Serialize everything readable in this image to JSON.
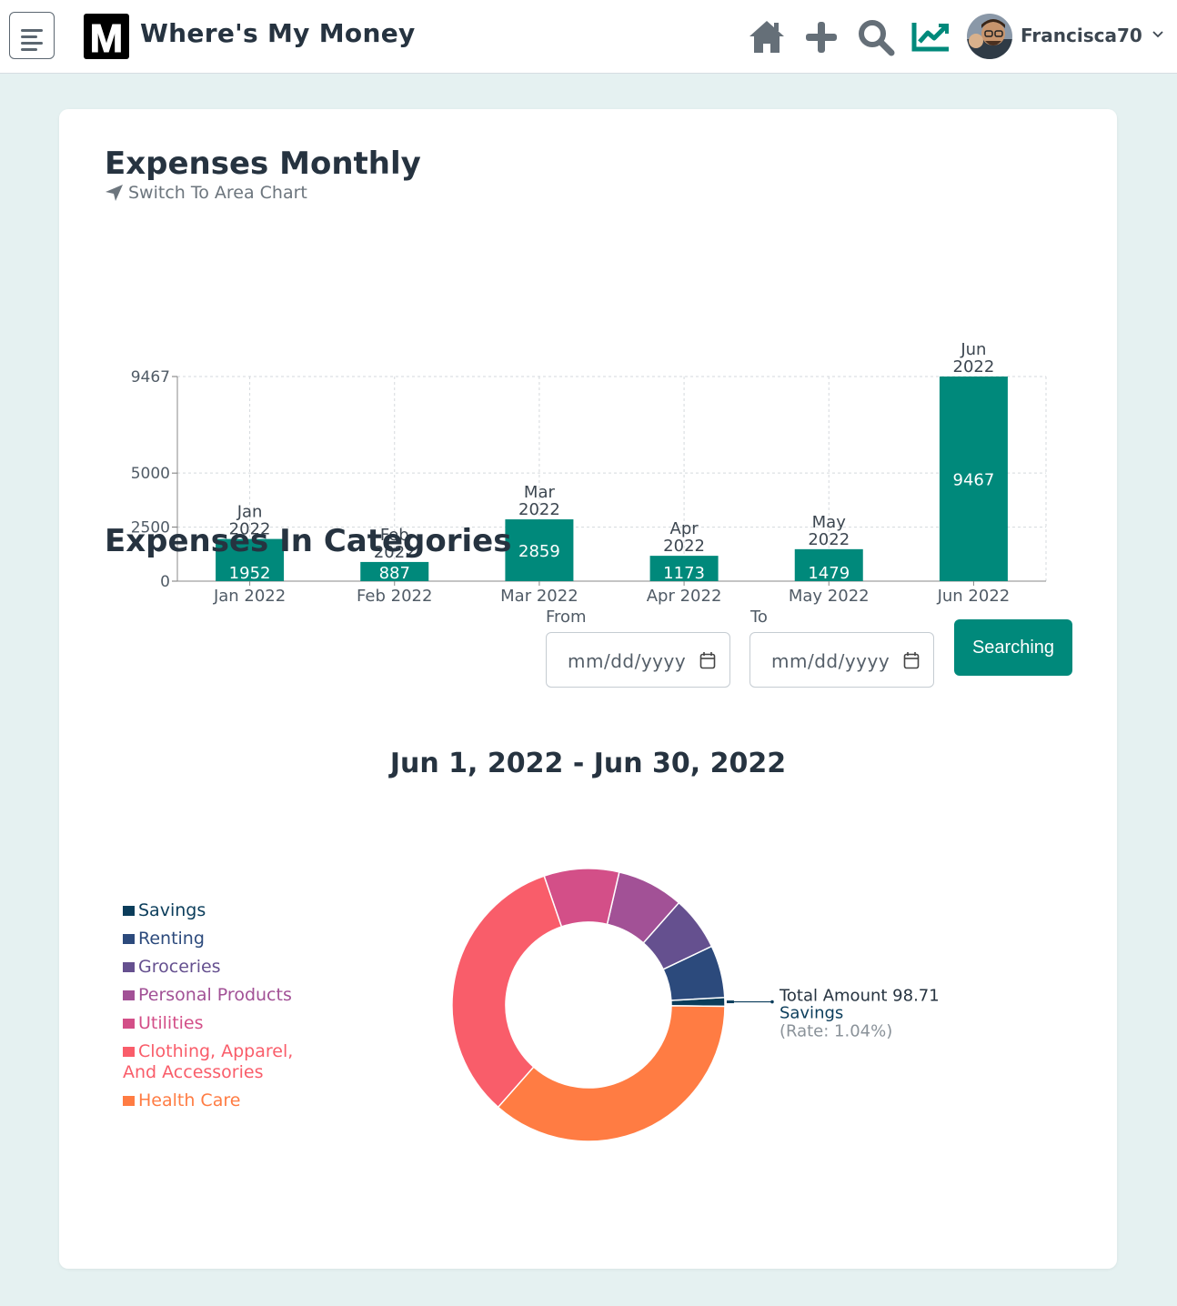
{
  "header": {
    "app_title": "Where's My Money",
    "logo_letter": "M",
    "username": "Francisca70",
    "nav_icons": [
      "home-icon",
      "plus-icon",
      "search-icon",
      "chart-line-icon"
    ],
    "accent_color": "#00897b"
  },
  "monthly": {
    "title": "Expenses Monthly",
    "switch_link": "Switch To Area Chart"
  },
  "categories_section": {
    "title": "Expenses In Categories",
    "from_label": "From",
    "to_label": "To",
    "from_placeholder": "mm/dd/yyyy",
    "to_placeholder": "mm/dd/yyyy",
    "search_button": "Searching",
    "range_title": "Jun 1, 2022 - Jun 30, 2022",
    "tooltip": {
      "amount_line": "Total Amount 98.71",
      "category": "Savings",
      "rate": "(Rate: 1.04%)"
    }
  },
  "chart_data": [
    {
      "type": "bar",
      "categories": [
        "Jan 2022",
        "Feb 2022",
        "Mar 2022",
        "Apr 2022",
        "May 2022",
        "Jun 2022"
      ],
      "values": [
        1952,
        887,
        2859,
        1173,
        1479,
        9467
      ],
      "top_labels": [
        [
          "Jan",
          "2022"
        ],
        [
          "Feb",
          "2022"
        ],
        [
          "Mar",
          "2022"
        ],
        [
          "Apr",
          "2022"
        ],
        [
          "May",
          "2022"
        ],
        [
          "Jun",
          "2022"
        ]
      ],
      "yticks": [
        0,
        2500,
        5000,
        9467
      ],
      "ylim": [
        0,
        9467
      ],
      "grid": true,
      "bar_color": "#00897b"
    },
    {
      "type": "pie",
      "variant": "donut",
      "slices": [
        {
          "name": "Savings",
          "value": 1.04,
          "color": "#0b3d5b"
        },
        {
          "name": "Renting",
          "value": 6.2,
          "color": "#2c4a7c"
        },
        {
          "name": "Groceries",
          "value": 6.4,
          "color": "#65508f"
        },
        {
          "name": "Personal Products",
          "value": 7.9,
          "color": "#a25196"
        },
        {
          "name": "Utilities",
          "value": 8.9,
          "color": "#d34f88"
        },
        {
          "name": "Clothing, Apparel, And Accessories",
          "value": 33.2,
          "color": "#f95d6a"
        },
        {
          "name": "Health Care",
          "value": 36.36,
          "color": "#ff7c43"
        }
      ],
      "legend": [
        [
          "Savings"
        ],
        [
          "Renting"
        ],
        [
          "Groceries"
        ],
        [
          "Personal Products"
        ],
        [
          "Utilities"
        ],
        [
          "Clothing, Apparel,",
          "And Accessories"
        ],
        [
          "Health Care"
        ]
      ],
      "legend_position": "left"
    }
  ]
}
